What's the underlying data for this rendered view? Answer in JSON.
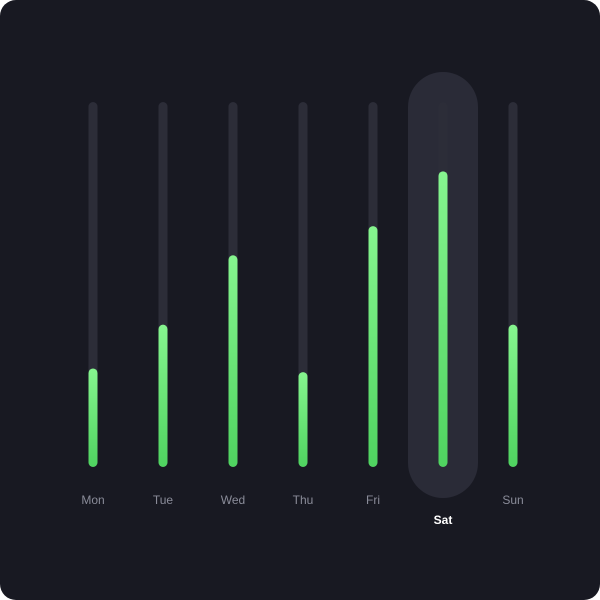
{
  "chart_data": {
    "type": "bar",
    "categories": [
      "Mon",
      "Tue",
      "Wed",
      "Thu",
      "Fri",
      "Sat",
      "Sun"
    ],
    "values": [
      27,
      39,
      58,
      26,
      66,
      81,
      39
    ],
    "ylim": [
      0,
      100
    ],
    "highlighted_category": "Sat",
    "grid": false,
    "colors": {
      "background": "#181922",
      "track": "#2c2d38",
      "bar_top": "#86f58f",
      "bar_bottom": "#4fd360",
      "highlight": "#2a2b37",
      "label": "#8a8c99",
      "label_active": "#ffffff"
    }
  }
}
